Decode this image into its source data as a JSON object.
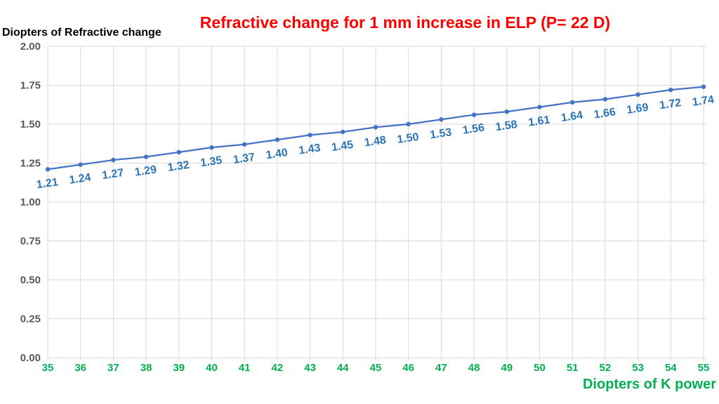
{
  "title": {
    "text": "Refractive change for 1 mm increase in ELP (P= 22 D)",
    "color": "#ff0000"
  },
  "y_axis_title": "Diopters of Refractive change",
  "x_axis_title": "Diopters of K power",
  "chart_data": {
    "type": "line",
    "title": "Refractive change for 1 mm increase in ELP (P= 22 D)",
    "xlabel": "Diopters of K power",
    "ylabel": "Diopters of Refractive change",
    "categories": [
      35,
      36,
      37,
      38,
      39,
      40,
      41,
      42,
      43,
      44,
      45,
      46,
      47,
      48,
      49,
      50,
      51,
      52,
      53,
      54,
      55
    ],
    "values": [
      1.21,
      1.24,
      1.27,
      1.29,
      1.32,
      1.35,
      1.37,
      1.4,
      1.43,
      1.45,
      1.48,
      1.5,
      1.53,
      1.56,
      1.58,
      1.61,
      1.64,
      1.66,
      1.69,
      1.72,
      1.74
    ],
    "point_labels": [
      "1.21",
      "1.24",
      "1.27",
      "1.29",
      "1.32",
      "1.35",
      "1.37",
      "1.40",
      "1.43",
      "1.45",
      "1.48",
      "1.50",
      "1.53",
      "1.56",
      "1.58",
      "1.61",
      "1.64",
      "1.66",
      "1.69",
      "1.72",
      "1.74"
    ],
    "ytick_labels": [
      "0.00",
      "0.25",
      "0.50",
      "0.75",
      "1.00",
      "1.25",
      "1.50",
      "1.75",
      "2.00"
    ],
    "ylim": [
      0,
      2
    ],
    "ytick_step": 0.25,
    "grid": true,
    "legend": false,
    "colors": {
      "line": "#4472c4",
      "marker": "#4472c4",
      "point_label": "#2e75b6",
      "x_tick": "#00b050",
      "x_axis_title": "#00b050",
      "y_tick": "#595959",
      "gridline": "#d9d9d9",
      "title": "#ff0000",
      "y_axis_title": "#000000",
      "background": "#ffffff"
    }
  }
}
